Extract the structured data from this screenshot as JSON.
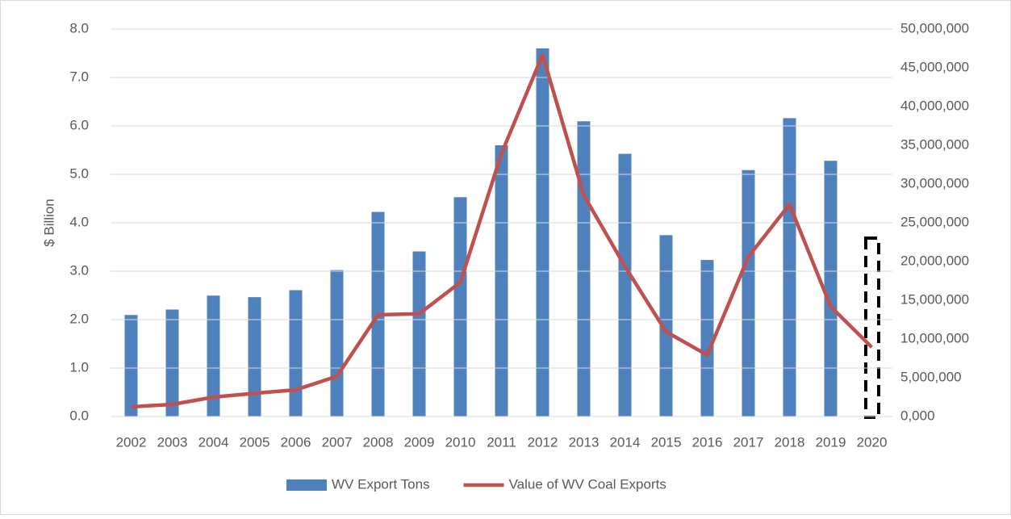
{
  "chart_data": {
    "type": "bar_line",
    "y_label": "$ Billion",
    "categories": [
      "2002",
      "2003",
      "2004",
      "2005",
      "2006",
      "2007",
      "2008",
      "2009",
      "2010",
      "2011",
      "2012",
      "2013",
      "2014",
      "2015",
      "2016",
      "2017",
      "2018",
      "2019",
      "2020"
    ],
    "series": [
      {
        "name": "WV Export Tons",
        "type": "bar",
        "axis": "y2",
        "color": "#4f81bd",
        "values": [
          13100000,
          13800000,
          15600000,
          15400000,
          16300000,
          18900000,
          26400000,
          21300000,
          28300000,
          35000000,
          47500000,
          38100000,
          33900000,
          23400000,
          20200000,
          31800000,
          38500000,
          33000000,
          null
        ]
      },
      {
        "name": "Value of WV Coal Exports",
        "type": "line",
        "axis": "y",
        "color": "#c0504d",
        "values": [
          0.2,
          0.25,
          0.4,
          0.48,
          0.55,
          0.83,
          2.1,
          2.12,
          2.77,
          5.43,
          7.47,
          4.57,
          3.1,
          1.75,
          1.27,
          3.3,
          4.38,
          2.27,
          1.43
        ]
      }
    ],
    "ylim": [
      0,
      8
    ],
    "yticks": [
      {
        "value": 0,
        "label": "0.0"
      },
      {
        "value": 1,
        "label": "1.0"
      },
      {
        "value": 2,
        "label": "2.0"
      },
      {
        "value": 3,
        "label": "3.0"
      },
      {
        "value": 4,
        "label": "4.0"
      },
      {
        "value": 5,
        "label": "5.0"
      },
      {
        "value": 6,
        "label": "6.0"
      },
      {
        "value": 7,
        "label": "7.0"
      },
      {
        "value": 8,
        "label": "8.0"
      }
    ],
    "y2lim": [
      0,
      50000000
    ],
    "y2ticks": [
      {
        "value": 0,
        "label": "0,000"
      },
      {
        "value": 5000000,
        "label": "5,000,000"
      },
      {
        "value": 10000000,
        "label": "10,000,000"
      },
      {
        "value": 15000000,
        "label": "15,000,000"
      },
      {
        "value": 20000000,
        "label": "20,000,000"
      },
      {
        "value": 25000000,
        "label": "25,000,000"
      },
      {
        "value": 30000000,
        "label": "30,000,000"
      },
      {
        "value": 35000000,
        "label": "35,000,000"
      },
      {
        "value": 40000000,
        "label": "40,000,000"
      },
      {
        "value": 45000000,
        "label": "45,000,000"
      },
      {
        "value": 50000000,
        "label": "50,000,000"
      }
    ],
    "grid": true,
    "legend": "bottom"
  }
}
